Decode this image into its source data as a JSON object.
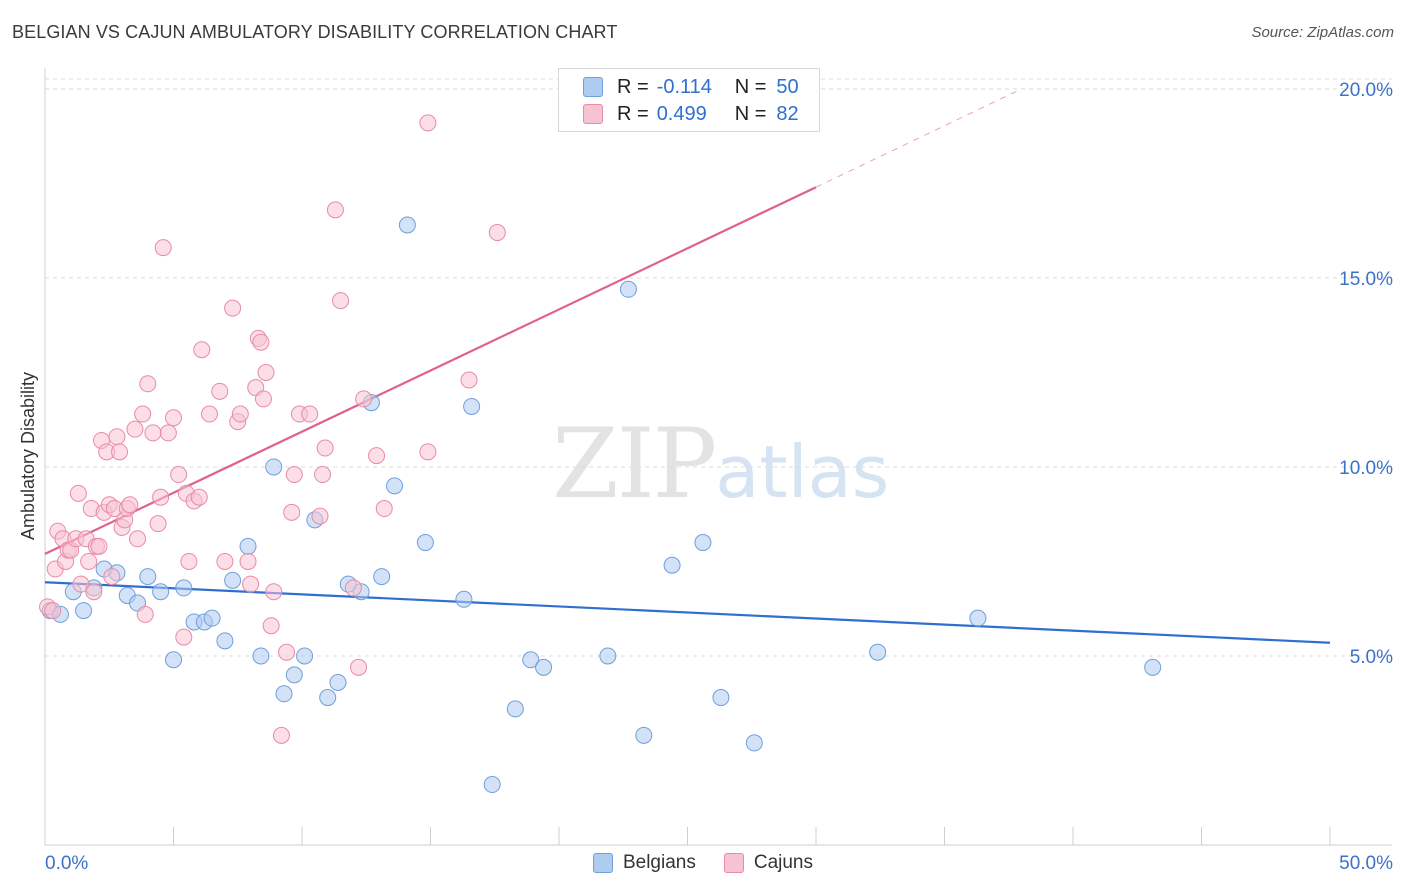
{
  "header": {
    "title": "BELGIAN VS CAJUN AMBULATORY DISABILITY CORRELATION CHART",
    "source": "Source: ZipAtlas.com"
  },
  "watermark": {
    "zip": "ZIP",
    "atlas": "atlas"
  },
  "legend": {
    "rows": [
      {
        "r_label": "R =",
        "r_value": "-0.114",
        "n_label": "N =",
        "n_value": "50",
        "color": "#aecbf0",
        "border": "#6f9fdc"
      },
      {
        "r_label": "R =",
        "r_value": "0.499",
        "n_label": "N =",
        "n_value": "82",
        "color": "#f7c3d2",
        "border": "#e98aa8"
      }
    ]
  },
  "bottom_legend": [
    {
      "label": "Belgians",
      "color": "#aecbf0",
      "border": "#6f9fdc"
    },
    {
      "label": "Cajuns",
      "color": "#f7c3d2",
      "border": "#e98aa8"
    }
  ],
  "chart_data": {
    "type": "scatter",
    "title": "BELGIAN VS CAJUN AMBULATORY DISABILITY CORRELATION CHART",
    "xlabel": "",
    "ylabel": "Ambulatory Disability",
    "xlim": [
      0,
      50
    ],
    "ylim": [
      0,
      20.5
    ],
    "x_tick_labels": [
      "0.0%",
      "50.0%"
    ],
    "y_ticks": [
      5,
      10,
      15,
      20
    ],
    "y_tick_labels": [
      "5.0%",
      "10.0%",
      "15.0%",
      "20.0%"
    ],
    "series": [
      {
        "name": "Belgians",
        "color": "#6f9fdc",
        "fill": "#aecbf0",
        "trend": {
          "x0": 0,
          "y0": 6.95,
          "x1": 50,
          "y1": 5.35,
          "color": "#2f6fd0"
        },
        "points": [
          [
            0.2,
            6.2
          ],
          [
            0.6,
            6.1
          ],
          [
            1.1,
            6.7
          ],
          [
            1.5,
            6.2
          ],
          [
            1.9,
            6.8
          ],
          [
            2.3,
            7.3
          ],
          [
            2.8,
            7.2
          ],
          [
            3.2,
            6.6
          ],
          [
            3.6,
            6.4
          ],
          [
            4.0,
            7.1
          ],
          [
            4.5,
            6.7
          ],
          [
            5.0,
            4.9
          ],
          [
            5.4,
            6.8
          ],
          [
            5.8,
            5.9
          ],
          [
            6.2,
            5.9
          ],
          [
            6.5,
            6.0
          ],
          [
            7.0,
            5.4
          ],
          [
            7.3,
            7.0
          ],
          [
            7.9,
            7.9
          ],
          [
            8.4,
            5.0
          ],
          [
            8.9,
            10.0
          ],
          [
            9.3,
            4.0
          ],
          [
            9.7,
            4.5
          ],
          [
            10.1,
            5.0
          ],
          [
            10.5,
            8.6
          ],
          [
            11.0,
            3.9
          ],
          [
            11.4,
            4.3
          ],
          [
            11.8,
            6.9
          ],
          [
            12.3,
            6.7
          ],
          [
            12.7,
            11.7
          ],
          [
            13.1,
            7.1
          ],
          [
            13.6,
            9.5
          ],
          [
            14.1,
            16.4
          ],
          [
            14.8,
            8.0
          ],
          [
            16.3,
            6.5
          ],
          [
            16.6,
            11.6
          ],
          [
            17.4,
            1.6
          ],
          [
            18.3,
            3.6
          ],
          [
            18.9,
            4.9
          ],
          [
            19.4,
            4.7
          ],
          [
            21.9,
            5.0
          ],
          [
            22.7,
            14.7
          ],
          [
            23.3,
            2.9
          ],
          [
            24.4,
            7.4
          ],
          [
            25.6,
            8.0
          ],
          [
            26.3,
            3.9
          ],
          [
            27.6,
            2.7
          ],
          [
            32.4,
            5.1
          ],
          [
            36.3,
            6.0
          ],
          [
            43.1,
            4.7
          ]
        ]
      },
      {
        "name": "Cajuns",
        "color": "#e98aa8",
        "fill": "#f7c3d2",
        "trend": {
          "x0": 0,
          "y0": 7.7,
          "x1": 30,
          "y1": 17.4,
          "color": "#e0608e"
        },
        "dashed_extension": {
          "x0": 30,
          "y0": 17.4,
          "x1": 38,
          "y1": 20.0
        },
        "points": [
          [
            0.1,
            6.3
          ],
          [
            0.4,
            7.3
          ],
          [
            0.5,
            8.3
          ],
          [
            0.7,
            8.1
          ],
          [
            0.8,
            7.5
          ],
          [
            0.9,
            7.8
          ],
          [
            1.0,
            7.8
          ],
          [
            1.2,
            8.1
          ],
          [
            1.3,
            9.3
          ],
          [
            1.4,
            6.9
          ],
          [
            1.6,
            8.1
          ],
          [
            1.7,
            7.5
          ],
          [
            1.8,
            8.9
          ],
          [
            1.9,
            6.7
          ],
          [
            2.0,
            7.9
          ],
          [
            2.1,
            7.9
          ],
          [
            2.2,
            10.7
          ],
          [
            2.3,
            8.8
          ],
          [
            2.4,
            10.4
          ],
          [
            2.5,
            9.0
          ],
          [
            2.6,
            7.1
          ],
          [
            2.7,
            8.9
          ],
          [
            2.8,
            10.8
          ],
          [
            2.9,
            10.4
          ],
          [
            3.0,
            8.4
          ],
          [
            3.1,
            8.6
          ],
          [
            3.2,
            8.9
          ],
          [
            3.3,
            9.0
          ],
          [
            3.5,
            11.0
          ],
          [
            3.6,
            8.1
          ],
          [
            3.8,
            11.4
          ],
          [
            3.9,
            6.1
          ],
          [
            4.0,
            12.2
          ],
          [
            4.2,
            10.9
          ],
          [
            4.4,
            8.5
          ],
          [
            4.5,
            9.2
          ],
          [
            4.6,
            15.8
          ],
          [
            4.8,
            10.9
          ],
          [
            5.0,
            11.3
          ],
          [
            5.2,
            9.8
          ],
          [
            5.4,
            5.5
          ],
          [
            5.5,
            9.3
          ],
          [
            5.6,
            7.5
          ],
          [
            5.8,
            9.1
          ],
          [
            6.0,
            9.2
          ],
          [
            6.1,
            13.1
          ],
          [
            6.4,
            11.4
          ],
          [
            6.8,
            12.0
          ],
          [
            7.0,
            7.5
          ],
          [
            7.3,
            14.2
          ],
          [
            7.5,
            11.2
          ],
          [
            7.6,
            11.4
          ],
          [
            7.9,
            7.5
          ],
          [
            8.0,
            6.9
          ],
          [
            8.2,
            12.1
          ],
          [
            8.3,
            13.4
          ],
          [
            8.4,
            13.3
          ],
          [
            8.5,
            11.8
          ],
          [
            8.6,
            12.5
          ],
          [
            8.8,
            5.8
          ],
          [
            8.9,
            6.7
          ],
          [
            9.2,
            2.9
          ],
          [
            9.4,
            5.1
          ],
          [
            9.6,
            8.8
          ],
          [
            9.7,
            9.8
          ],
          [
            9.9,
            11.4
          ],
          [
            10.3,
            11.4
          ],
          [
            10.7,
            8.7
          ],
          [
            10.8,
            9.8
          ],
          [
            10.9,
            10.5
          ],
          [
            11.3,
            16.8
          ],
          [
            11.5,
            14.4
          ],
          [
            12.0,
            6.8
          ],
          [
            12.2,
            4.7
          ],
          [
            12.4,
            11.8
          ],
          [
            12.9,
            10.3
          ],
          [
            13.2,
            8.9
          ],
          [
            14.9,
            10.4
          ],
          [
            14.9,
            19.1
          ],
          [
            16.5,
            12.3
          ],
          [
            17.6,
            16.2
          ],
          [
            0.3,
            6.2
          ]
        ]
      }
    ]
  }
}
